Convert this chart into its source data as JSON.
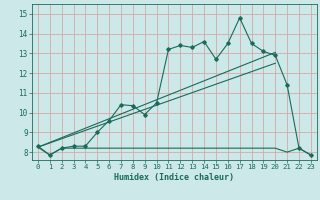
{
  "xlabel": "Humidex (Indice chaleur)",
  "xlim": [
    -0.5,
    23.5
  ],
  "ylim": [
    7.6,
    15.5
  ],
  "xticks": [
    0,
    1,
    2,
    3,
    4,
    5,
    6,
    7,
    8,
    9,
    10,
    11,
    12,
    13,
    14,
    15,
    16,
    17,
    18,
    19,
    20,
    21,
    22,
    23
  ],
  "yticks": [
    8,
    9,
    10,
    11,
    12,
    13,
    14,
    15
  ],
  "bg_color": "#cce8e8",
  "grid_color": "#d4a8a8",
  "line_color": "#1a6b5a",
  "main_x": [
    0,
    1,
    2,
    3,
    4,
    5,
    6,
    7,
    8,
    9,
    10,
    11,
    12,
    13,
    14,
    15,
    16,
    17,
    18,
    19,
    20,
    21,
    22,
    23
  ],
  "main_y": [
    8.3,
    7.85,
    8.2,
    8.3,
    8.3,
    9.0,
    9.6,
    10.4,
    10.35,
    9.9,
    10.5,
    13.2,
    13.4,
    13.3,
    13.6,
    12.7,
    13.5,
    14.8,
    13.5,
    13.1,
    12.9,
    11.4,
    8.2,
    7.85
  ],
  "flat_x": [
    0,
    1,
    2,
    3,
    4,
    9,
    10,
    14,
    15,
    20,
    21,
    22,
    23
  ],
  "flat_y": [
    8.25,
    7.85,
    8.2,
    8.2,
    8.2,
    8.2,
    8.2,
    8.2,
    8.2,
    8.2,
    8.0,
    8.2,
    7.85
  ],
  "trend1_x": [
    0,
    20
  ],
  "trend1_y": [
    8.25,
    13.05
  ],
  "trend2_x": [
    0,
    20
  ],
  "trend2_y": [
    8.25,
    12.5
  ]
}
